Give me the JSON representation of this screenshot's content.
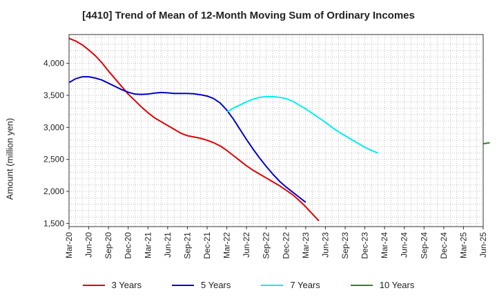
{
  "chart_data": {
    "type": "line",
    "title": "[4410]  Trend of Mean of 12-Month Moving Sum of Ordinary Incomes",
    "xlabel": "",
    "ylabel": "Amount (million yen)",
    "ylim": [
      1450,
      4450
    ],
    "yticks": [
      1500,
      2000,
      2500,
      3000,
      3500,
      4000
    ],
    "ytick_labels": [
      "1,500",
      "2,000",
      "2,500",
      "3,000",
      "3,500",
      "4,000"
    ],
    "x_tick_labels": [
      "Mar-20",
      "Jun-20",
      "Sep-20",
      "Dec-20",
      "Mar-21",
      "Jun-21",
      "Sep-21",
      "Dec-21",
      "Mar-22",
      "Jun-22",
      "Sep-22",
      "Dec-22",
      "Mar-23",
      "Jun-23",
      "Sep-23",
      "Dec-23",
      "Mar-24",
      "Jun-24",
      "Sep-24",
      "Dec-24",
      "Mar-25",
      "Jun-25"
    ],
    "series": [
      {
        "name": "3 Years",
        "color": "#dd0000",
        "start_index": 0,
        "values": [
          4390,
          4350,
          4290,
          4210,
          4120,
          4010,
          3880,
          3760,
          3640,
          3520,
          3420,
          3320,
          3230,
          3150,
          3090,
          3030,
          2970,
          2910,
          2870,
          2850,
          2830,
          2800,
          2760,
          2710,
          2640,
          2560,
          2480,
          2400,
          2330,
          2270,
          2210,
          2150,
          2090,
          2020,
          1950,
          1860,
          1760,
          1650,
          1540
        ]
      },
      {
        "name": "5 Years",
        "color": "#0000cc",
        "start_index": 0,
        "values": [
          3700,
          3760,
          3790,
          3790,
          3770,
          3740,
          3690,
          3640,
          3590,
          3550,
          3520,
          3515,
          3520,
          3535,
          3545,
          3540,
          3530,
          3530,
          3530,
          3525,
          3510,
          3490,
          3450,
          3380,
          3270,
          3130,
          2970,
          2810,
          2660,
          2520,
          2390,
          2270,
          2160,
          2070,
          1990,
          1910,
          1830
        ]
      },
      {
        "name": "7 Years",
        "color": "#00eeee",
        "start_index": 24,
        "values": [
          3240,
          3300,
          3350,
          3400,
          3440,
          3470,
          3480,
          3480,
          3470,
          3450,
          3410,
          3350,
          3290,
          3220,
          3150,
          3080,
          3000,
          2930,
          2870,
          2810,
          2750,
          2690,
          2640,
          2600
        ]
      },
      {
        "name": "10 Years",
        "color": "#228822",
        "start_index": 63,
        "values": [
          2745,
          2760
        ]
      }
    ],
    "legend_position": "bottom",
    "grid": true
  }
}
